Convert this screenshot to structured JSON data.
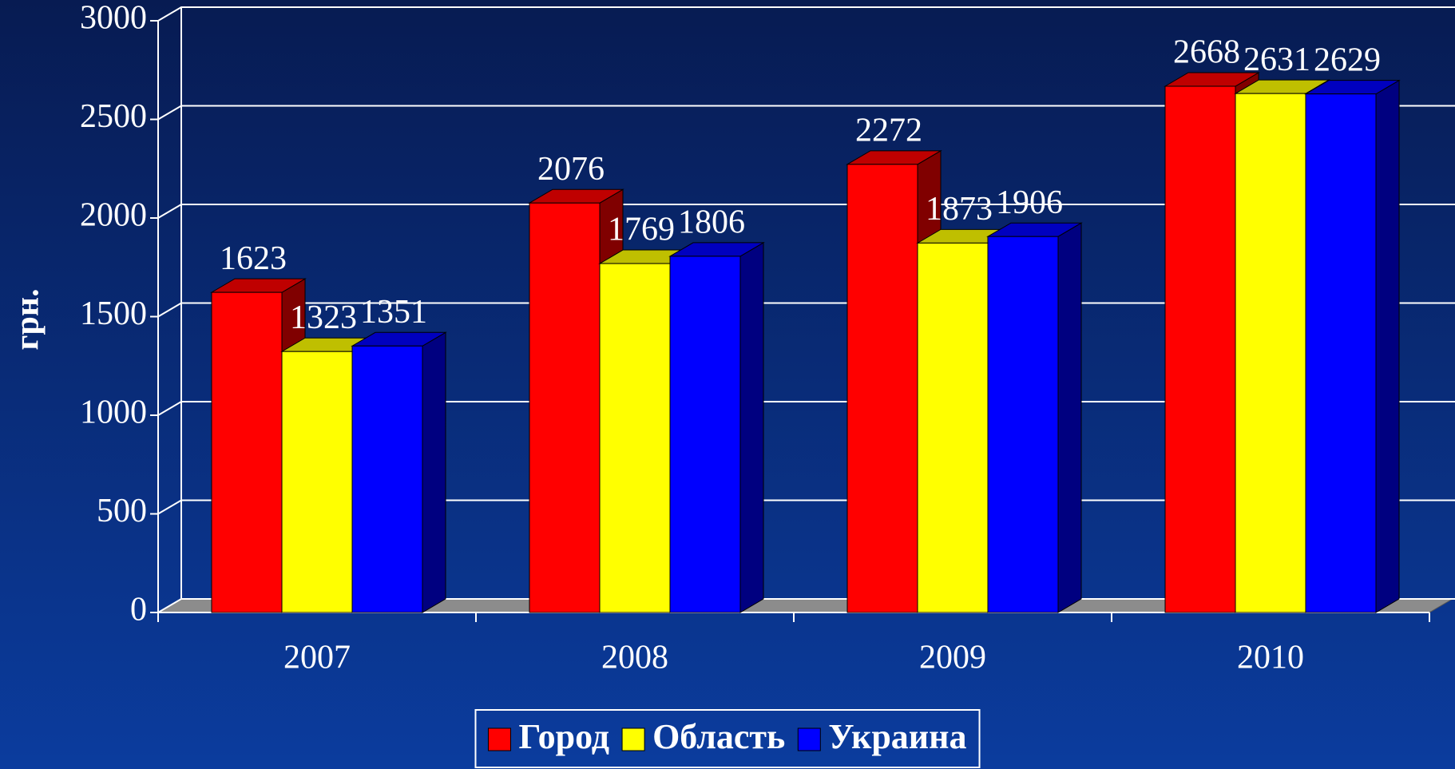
{
  "chart_data": {
    "type": "bar3d",
    "y_label": "грн.",
    "categories": [
      "2007",
      "2008",
      "2009",
      "2010"
    ],
    "series": [
      {
        "name": "Город",
        "color": "#ff0000",
        "values": [
          1623,
          2076,
          2272,
          2668
        ]
      },
      {
        "name": "Область",
        "color": "#ffff00",
        "values": [
          1323,
          1769,
          1873,
          2631
        ]
      },
      {
        "name": "Украина",
        "color": "#0000ff",
        "values": [
          1351,
          1806,
          1906,
          2629
        ]
      }
    ],
    "ylim": [
      0,
      3000
    ],
    "yticks": [
      0,
      500,
      1000,
      1500,
      2000,
      2500,
      3000
    ],
    "grid": true,
    "legend": "bottom"
  }
}
